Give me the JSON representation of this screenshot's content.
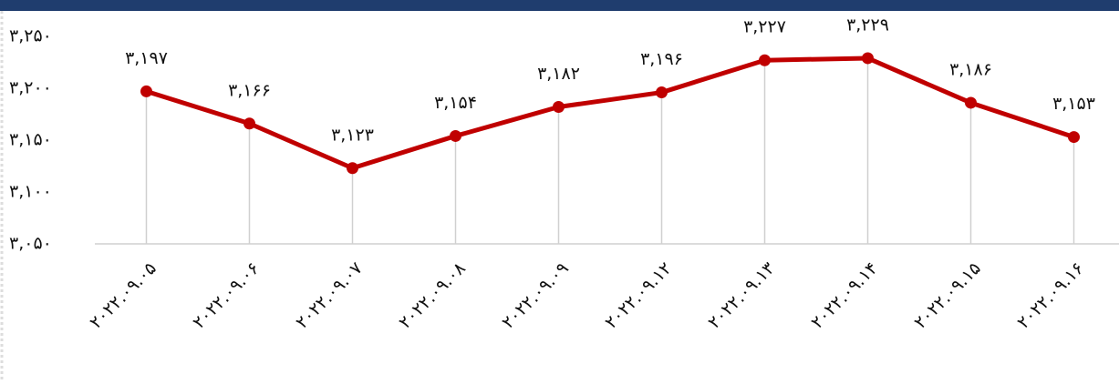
{
  "chart_data": {
    "type": "line",
    "categories": [
      "۲۰۲۲.۰۹.۰۵",
      "۲۰۲۲.۰۹.۰۶",
      "۲۰۲۲.۰۹.۰۷",
      "۲۰۲۲.۰۹.۰۸",
      "۲۰۲۲.۰۹.۰۹",
      "۲۰۲۲.۰۹.۱۲",
      "۲۰۲۲.۰۹.۱۳",
      "۲۰۲۲.۰۹.۱۴",
      "۲۰۲۲.۰۹.۱۵",
      "۲۰۲۲.۰۹.۱۶"
    ],
    "values": [
      3197,
      3166,
      3123,
      3154,
      3182,
      3196,
      3227,
      3229,
      3186,
      3153
    ],
    "value_labels": [
      "۳,۱۹۷",
      "۳,۱۶۶",
      "۳,۱۲۳",
      "۳,۱۵۴",
      "۳,۱۸۲",
      "۳,۱۹۶",
      "۳,۲۲۷",
      "۳,۲۲۹",
      "۳,۱۸۶",
      "۳,۱۵۳"
    ],
    "color": "#c00000",
    "ylim": [
      3050,
      3250
    ],
    "yticks": [
      {
        "value": 3050,
        "label": "۳,۰۵۰"
      },
      {
        "value": 3100,
        "label": "۳,۱۰۰"
      },
      {
        "value": 3150,
        "label": "۳,۱۵۰"
      },
      {
        "value": 3200,
        "label": "۳,۲۰۰"
      },
      {
        "value": 3250,
        "label": "۳,۲۵۰"
      }
    ]
  }
}
